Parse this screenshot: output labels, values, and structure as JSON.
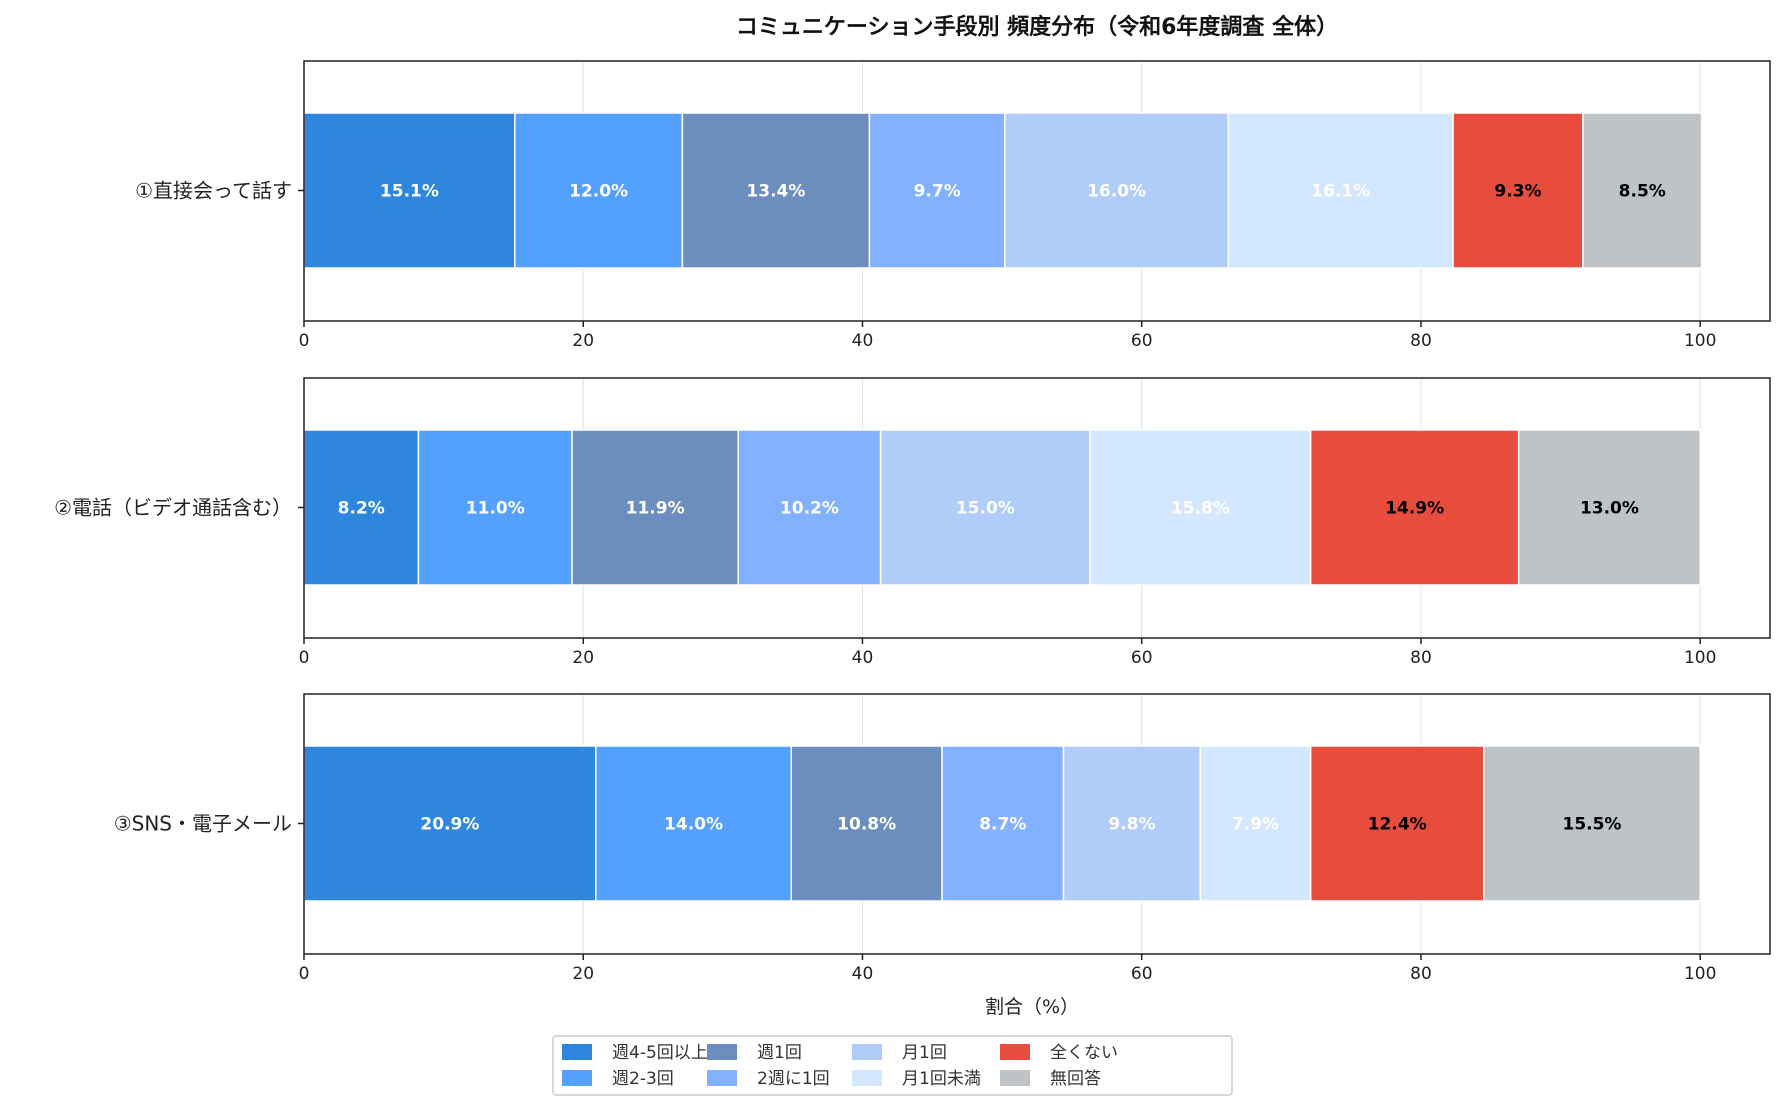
{
  "chart_data": {
    "type": "bar",
    "orientation": "horizontal-stacked",
    "title": "コミュニケーション手段別 頻度分布（令和6年度調査 全体）",
    "xlabel": "割合（%）",
    "xlim": [
      0,
      105
    ],
    "xticks": [
      0,
      20,
      40,
      60,
      80,
      100
    ],
    "grid": true,
    "legend_position": "bottom-center",
    "series": [
      {
        "name": "週4-5回以上",
        "color": "#2e86de"
      },
      {
        "name": "週2-3回",
        "color": "#54a0ff"
      },
      {
        "name": "週1回",
        "color": "#6c8ebf"
      },
      {
        "name": "2週に1回",
        "color": "#82b1ff"
      },
      {
        "name": "月1回",
        "color": "#b0cdf9"
      },
      {
        "name": "月1回未満",
        "color": "#d3e7fe"
      },
      {
        "name": "全くない",
        "color": "#e74c3c"
      },
      {
        "name": "無回答",
        "color": "#bdc3c7"
      }
    ],
    "label_colors": [
      "#ffffff",
      "#ffffff",
      "#ffffff",
      "#ffffff",
      "#ffffff",
      "#ffffff",
      "#000000",
      "#000000"
    ],
    "panels": [
      {
        "category": "①直接会って話す",
        "values": [
          15.1,
          12.0,
          13.4,
          9.7,
          16.0,
          16.1,
          9.3,
          8.5
        ],
        "labels": [
          "15.1%",
          "12.0%",
          "13.4%",
          "9.7%",
          "16.0%",
          "16.1%",
          "9.3%",
          "8.5%"
        ]
      },
      {
        "category": "②電話（ビデオ通話含む）",
        "values": [
          8.2,
          11.0,
          11.9,
          10.2,
          15.0,
          15.8,
          14.9,
          13.0
        ],
        "labels": [
          "8.2%",
          "11.0%",
          "11.9%",
          "10.2%",
          "15.0%",
          "15.8%",
          "14.9%",
          "13.0%"
        ]
      },
      {
        "category": "③SNS・電子メール",
        "values": [
          20.9,
          14.0,
          10.8,
          8.7,
          9.8,
          7.9,
          12.4,
          15.5
        ],
        "labels": [
          "20.9%",
          "14.0%",
          "10.8%",
          "8.7%",
          "9.8%",
          "7.9%",
          "12.4%",
          "15.5%"
        ]
      }
    ]
  }
}
